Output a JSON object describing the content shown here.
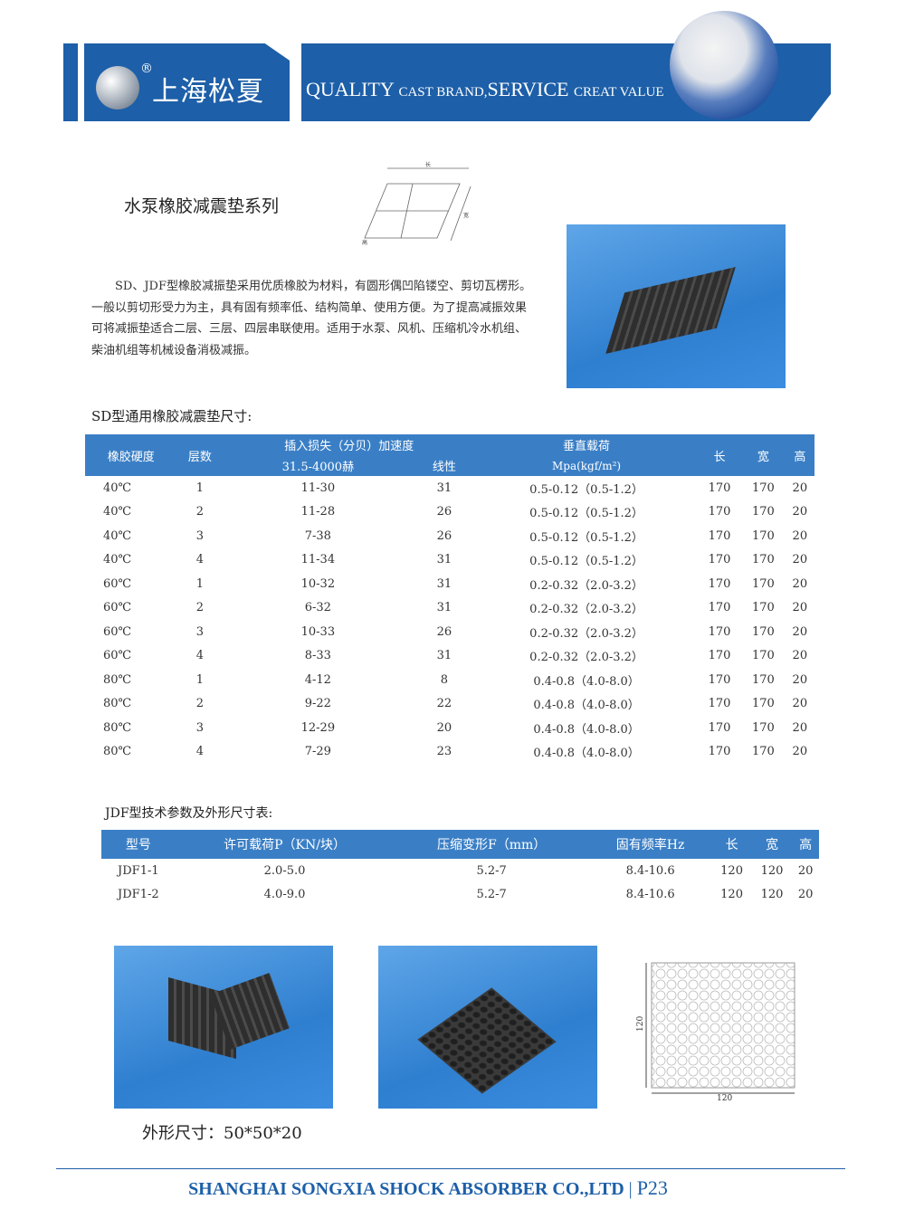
{
  "header": {
    "brand": "上海松夏",
    "registered": "®",
    "slogan_parts": [
      "QUALITY",
      "CAST BRAND,",
      "SERVICE",
      "CREAT VALUE"
    ]
  },
  "section_title": "水泵橡胶减震垫系列",
  "diagram_labels": {
    "length": "长",
    "width": "宽",
    "height": "高"
  },
  "intro": "SD、JDF型橡胶减振垫采用优质橡胶为材料，有圆形偶凹陷镂空、剪切瓦楞形。一般以剪切形受力为主，具有固有频率低、结构简单、使用方便。为了提高减振效果可将减振垫适合二层、三层、四层串联使用。适用于水泵、风机、压缩机冷水机组、柴油机组等机械设备消极减振。",
  "sd_table": {
    "caption": "SD型通用橡胶减震垫尺寸:",
    "headers": {
      "hardness": "橡胶硬度",
      "layers": "层数",
      "insertion_loss": "插入损失（分贝）加速度",
      "freq_range": "31.5-4000赫",
      "linear": "线性",
      "vertical_load": "垂直载荷",
      "load_unit": "Mpa(kgf/m²)",
      "length": "长",
      "width": "宽",
      "height": "高"
    },
    "rows": [
      [
        "40℃",
        "1",
        "11-30",
        "31",
        "0.5-0.12（0.5-1.2）",
        "170",
        "170",
        "20"
      ],
      [
        "40℃",
        "2",
        "11-28",
        "26",
        "0.5-0.12（0.5-1.2）",
        "170",
        "170",
        "20"
      ],
      [
        "40℃",
        "3",
        "7-38",
        "26",
        "0.5-0.12（0.5-1.2）",
        "170",
        "170",
        "20"
      ],
      [
        "40℃",
        "4",
        "11-34",
        "31",
        "0.5-0.12（0.5-1.2）",
        "170",
        "170",
        "20"
      ],
      [
        "60℃",
        "1",
        "10-32",
        "31",
        "0.2-0.32（2.0-3.2）",
        "170",
        "170",
        "20"
      ],
      [
        "60℃",
        "2",
        "6-32",
        "31",
        "0.2-0.32（2.0-3.2）",
        "170",
        "170",
        "20"
      ],
      [
        "60℃",
        "3",
        "10-33",
        "26",
        "0.2-0.32（2.0-3.2）",
        "170",
        "170",
        "20"
      ],
      [
        "60℃",
        "4",
        "8-33",
        "31",
        "0.2-0.32（2.0-3.2）",
        "170",
        "170",
        "20"
      ],
      [
        "80℃",
        "1",
        "4-12",
        "8",
        "0.4-0.8（4.0-8.0）",
        "170",
        "170",
        "20"
      ],
      [
        "80℃",
        "2",
        "9-22",
        "22",
        "0.4-0.8（4.0-8.0）",
        "170",
        "170",
        "20"
      ],
      [
        "80℃",
        "3",
        "12-29",
        "20",
        "0.4-0.8（4.0-8.0）",
        "170",
        "170",
        "20"
      ],
      [
        "80℃",
        "4",
        "7-29",
        "23",
        "0.4-0.8（4.0-8.0）",
        "170",
        "170",
        "20"
      ]
    ]
  },
  "jdf_table": {
    "caption": "JDF型技术参数及外形尺寸表:",
    "headers": [
      "型号",
      "许可载荷P（KN/块）",
      "压缩变形F（mm）",
      "固有频率Hz",
      "长",
      "宽",
      "高"
    ],
    "rows": [
      [
        "JDF1-1",
        "2.0-5.0",
        "5.2-7",
        "8.4-10.6",
        "120",
        "120",
        "20"
      ],
      [
        "JDF1-2",
        "4.0-9.0",
        "5.2-7",
        "8.4-10.6",
        "120",
        "120",
        "20"
      ]
    ]
  },
  "drawing_dims": {
    "height": "120",
    "width": "120"
  },
  "size_caption": "外形尺寸：50*50*20",
  "footer": {
    "company": "SHANGHAI SONGXIA SHOCK ABSORBER CO.,LTD",
    "separator": "|",
    "page": "P23"
  },
  "colors": {
    "brand_blue": "#1d5fa8",
    "table_header": "#3a7fc6"
  }
}
